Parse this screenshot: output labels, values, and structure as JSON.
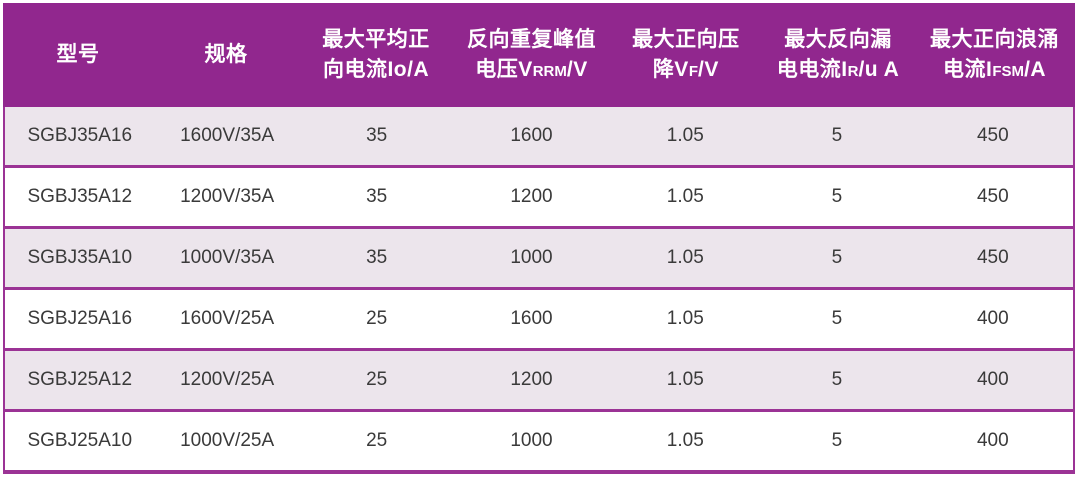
{
  "colors": {
    "header_bg": "#91278E",
    "border_purple": "#9B3395",
    "row_alt_bg": "#ECE5EC",
    "header_text": "#FFFFFF",
    "body_text": "#3A3A3A"
  },
  "chart_data": {
    "type": "table",
    "title": "",
    "columns": [
      {
        "label": "型号",
        "lines": {
          "l1": "型号"
        }
      },
      {
        "label": "规格",
        "lines": {
          "l1": "规格"
        }
      },
      {
        "label": "最大平均正向电流Io/A",
        "lines": {
          "l1": "最大平均正",
          "l2a": "向电流Io/A",
          "sub": "",
          "l2b": ""
        }
      },
      {
        "label": "反向重复峰值电压VRRM/V",
        "lines": {
          "l1": "反向重复峰值",
          "l2a": "电压V",
          "sub": "RRM",
          "l2b": "/V"
        }
      },
      {
        "label": "最大正向压降VF/V",
        "lines": {
          "l1": "最大正向压",
          "l2a": "降V",
          "sub": "F",
          "l2b": "/V"
        }
      },
      {
        "label": "最大反向漏电电流IR/u A",
        "lines": {
          "l1": "最大反向漏",
          "l2a": "电电流I",
          "sub": "R",
          "l2b": "/u A"
        }
      },
      {
        "label": "最大正向浪涌电流IFSM/A",
        "lines": {
          "l1": "最大正向浪涌",
          "l2a": "电流I",
          "sub": "FSM",
          "l2b": "/A"
        }
      }
    ],
    "rows": [
      [
        "SGBJ35A16",
        "1600V/35A",
        "35",
        "1600",
        "1.05",
        "5",
        "450"
      ],
      [
        "SGBJ35A12",
        "1200V/35A",
        "35",
        "1200",
        "1.05",
        "5",
        "450"
      ],
      [
        "SGBJ35A10",
        "1000V/35A",
        "35",
        "1000",
        "1.05",
        "5",
        "450"
      ],
      [
        "SGBJ25A16",
        "1600V/25A",
        "25",
        "1600",
        "1.05",
        "5",
        "400"
      ],
      [
        "SGBJ25A12",
        "1200V/25A",
        "25",
        "1200",
        "1.05",
        "5",
        "400"
      ],
      [
        "SGBJ25A10",
        "1000V/25A",
        "25",
        "1000",
        "1.05",
        "5",
        "400"
      ]
    ]
  }
}
